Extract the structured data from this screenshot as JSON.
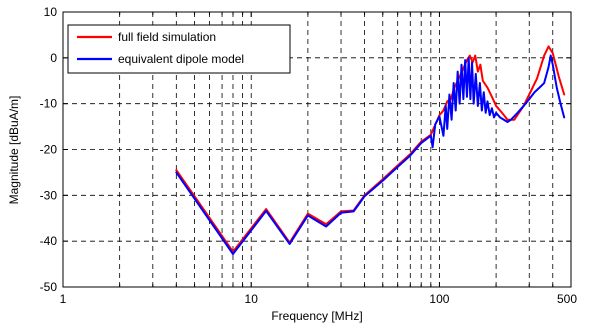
{
  "chart_data": {
    "type": "line",
    "xlabel": "Frequency [MHz]",
    "ylabel": "Magnitude [dBuA/m]",
    "x_scale": "log",
    "xlim": [
      1,
      500
    ],
    "ylim": [
      -50,
      10
    ],
    "x_ticks": [
      1,
      10,
      100
    ],
    "x_tick_labels": [
      "1",
      "10",
      "100"
    ],
    "x_minor_ticks": [
      2,
      3,
      4,
      5,
      6,
      7,
      8,
      9,
      20,
      30,
      40,
      50,
      60,
      70,
      80,
      90,
      200,
      300,
      400
    ],
    "x_end_label": "500",
    "y_ticks": [
      -50,
      -40,
      -30,
      -20,
      -10,
      0,
      10
    ],
    "y_tick_labels": [
      "-50",
      "-40",
      "-30",
      "-20",
      "-10",
      "0",
      "10"
    ],
    "grid": true,
    "legend_position": "top-left",
    "series": [
      {
        "name": "full field simulation",
        "color": "#ff0000",
        "x": [
          4,
          8,
          12,
          16,
          20,
          25,
          30,
          35,
          40,
          50,
          60,
          70,
          80,
          90,
          100,
          105,
          110,
          115,
          120,
          125,
          130,
          135,
          140,
          145,
          150,
          155,
          160,
          165,
          170,
          180,
          190,
          200,
          210,
          220,
          230,
          250,
          280,
          300,
          330,
          360,
          380,
          400,
          430,
          460
        ],
        "y": [
          -24.5,
          -42.3,
          -33,
          -40.3,
          -34,
          -36.3,
          -33.5,
          -33.3,
          -30,
          -26.5,
          -23.5,
          -21,
          -18.3,
          -16.8,
          -12.5,
          -11.5,
          -9.5,
          -9.0,
          -6.5,
          -5.0,
          -3.5,
          -2.0,
          -0.5,
          0.5,
          -1.0,
          0.5,
          -3.0,
          -1.5,
          -5.0,
          -6.5,
          -8.5,
          -10.5,
          -11.5,
          -12.5,
          -13.5,
          -13.5,
          -10.5,
          -8.0,
          -4.5,
          0.5,
          2.5,
          1.0,
          -4.0,
          -8.0
        ]
      },
      {
        "name": "equivalent dipole model",
        "color": "#0000ff",
        "x": [
          4,
          8,
          12,
          16,
          20,
          25,
          30,
          35,
          40,
          50,
          60,
          70,
          80,
          90,
          92,
          95,
          100,
          105,
          108,
          110,
          113,
          116,
          119,
          122,
          125,
          128,
          131,
          134,
          137,
          140,
          143,
          146,
          149,
          152,
          156,
          160,
          164,
          168,
          172,
          176,
          180,
          185,
          190,
          195,
          200,
          210,
          220,
          230,
          240,
          260,
          280,
          300,
          320,
          340,
          360,
          380,
          390,
          400,
          420,
          440,
          460
        ],
        "y": [
          -25,
          -42.8,
          -33.4,
          -40.6,
          -34.4,
          -36.8,
          -33.8,
          -33.5,
          -30.2,
          -26.8,
          -23.8,
          -21.3,
          -18.6,
          -17.0,
          -19.5,
          -14.5,
          -12.8,
          -17.0,
          -10.5,
          -15.5,
          -8.0,
          -13.5,
          -5.5,
          -11.5,
          -3.0,
          -10.0,
          -1.5,
          -9.0,
          -0.5,
          -8.5,
          0.0,
          -9.0,
          -1.0,
          -10.0,
          -3.5,
          -10.5,
          -5.5,
          -11.5,
          -7.5,
          -12.0,
          -9.5,
          -12.5,
          -11.0,
          -13.0,
          -12.0,
          -13.0,
          -13.5,
          -14.0,
          -13.5,
          -12.0,
          -10.5,
          -9.0,
          -7.5,
          -6.5,
          -5.5,
          -2.0,
          0.5,
          -1.5,
          -6.5,
          -10.0,
          -13.0
        ]
      }
    ]
  }
}
